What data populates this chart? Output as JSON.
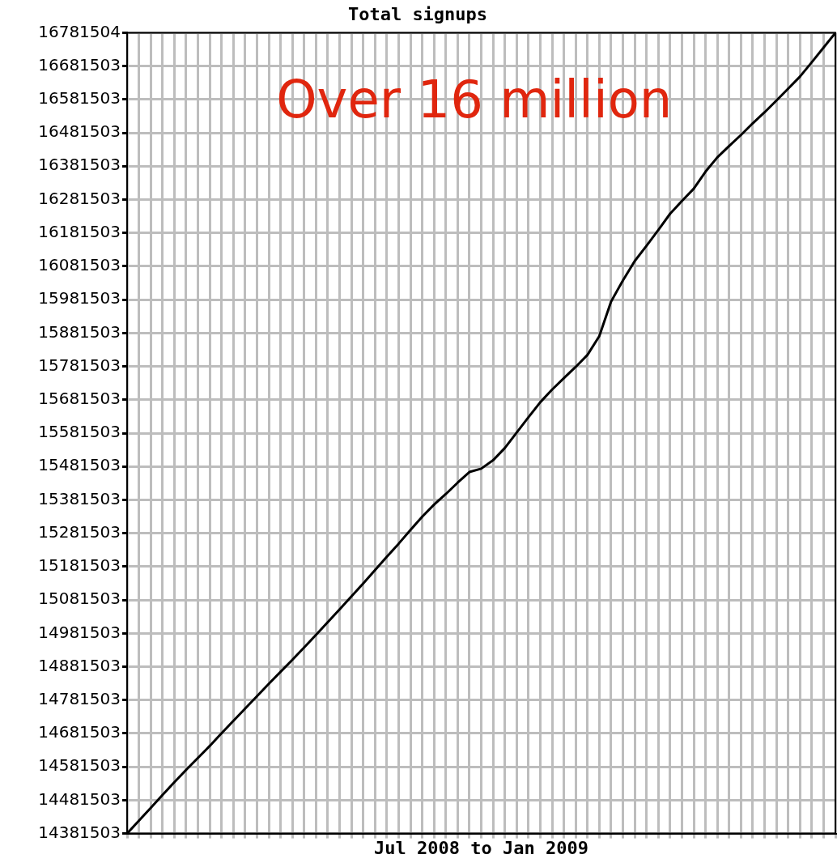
{
  "chart_data": {
    "type": "line",
    "title": "Total signups",
    "xlabel": "Jul 2008 to Jan 2009",
    "categories": [
      null,
      null,
      null,
      null,
      null,
      null,
      null,
      null,
      null,
      null,
      null,
      null,
      null,
      null,
      null,
      null,
      null,
      null,
      null,
      null,
      null,
      null,
      null,
      null,
      null,
      null,
      null,
      null,
      null,
      null,
      null,
      null,
      null,
      null,
      null,
      null,
      null,
      null,
      null,
      null,
      null,
      null,
      null,
      null,
      null,
      null,
      null,
      null,
      null,
      null,
      null,
      null,
      null,
      null,
      null,
      null,
      null,
      null,
      null,
      null,
      null
    ],
    "series": [
      {
        "color": "#000000",
        "values": [
          14381503,
          14420000,
          14458000,
          14497000,
          14535000,
          14572000,
          14608000,
          14644000,
          14682000,
          14719000,
          14756000,
          14793000,
          14830000,
          14866000,
          14902000,
          14939000,
          14977000,
          15015000,
          15053000,
          15092000,
          15131000,
          15171000,
          15211000,
          15250000,
          15291000,
          15331000,
          15367000,
          15399000,
          15433000,
          15465000,
          15475000,
          15500000,
          15537000,
          15583000,
          15629000,
          15674000,
          15712000,
          15746000,
          15780000,
          15816000,
          15872000,
          15976000,
          16039000,
          16097000,
          16143000,
          16190000,
          16239000,
          16277000,
          16314000,
          16365000,
          16408000,
          16442000,
          16475000,
          16510000,
          16543000,
          16578000,
          16614000,
          16650000,
          16693000,
          16737000,
          16781000
        ]
      }
    ],
    "ylim": [
      14381503,
      16781504
    ],
    "yticks": [
      14381503,
      14481503,
      14581503,
      14681503,
      14781503,
      14881503,
      14981503,
      15081503,
      15181503,
      15281503,
      15381503,
      15481503,
      15581503,
      15681503,
      15781503,
      15881503,
      15981503,
      16081503,
      16181503,
      16281503,
      16381503,
      16481503,
      16581503,
      16681503,
      16781504
    ],
    "annotations": [
      "Over 16 million"
    ],
    "grid": true,
    "legend": false,
    "tick_labels": "y",
    "marker": "none",
    "line_style": "solid"
  }
}
